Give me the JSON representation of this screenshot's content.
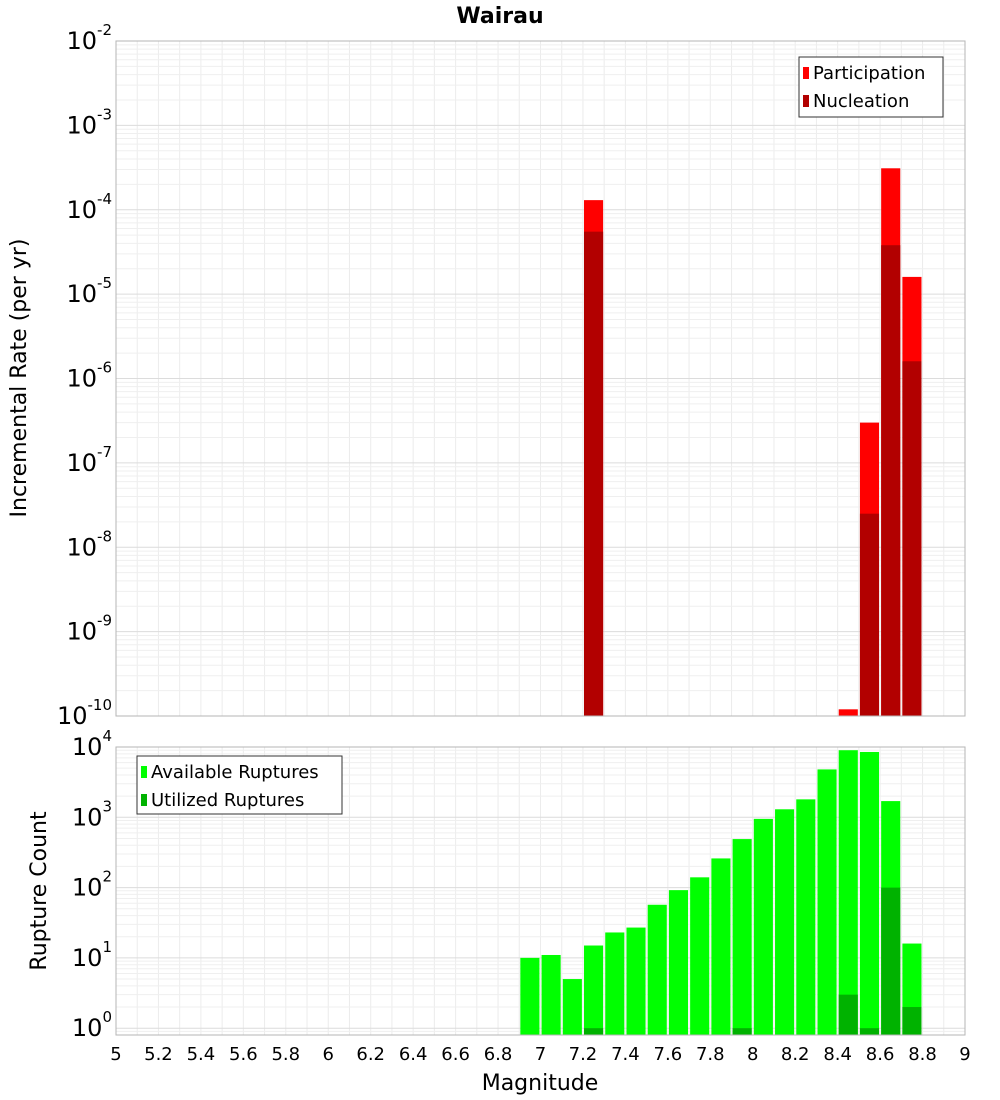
{
  "chart_data": [
    {
      "type": "bar",
      "title": "Wairau",
      "ylabel": "Incremental Rate (per yr)",
      "yscale": "log",
      "ylim": [
        1e-10,
        0.01
      ],
      "xlim": [
        5,
        9
      ],
      "grid": true,
      "legend_position": "top-right",
      "y_ticks": [
        {
          "base": "10",
          "exp": "-10",
          "value": 1e-10
        },
        {
          "base": "10",
          "exp": "-9",
          "value": 1e-09
        },
        {
          "base": "10",
          "exp": "-8",
          "value": 1e-08
        },
        {
          "base": "10",
          "exp": "-7",
          "value": 1e-07
        },
        {
          "base": "10",
          "exp": "-6",
          "value": 1e-06
        },
        {
          "base": "10",
          "exp": "-5",
          "value": 1e-05
        },
        {
          "base": "10",
          "exp": "-4",
          "value": 0.0001
        },
        {
          "base": "10",
          "exp": "-3",
          "value": 0.001
        },
        {
          "base": "10",
          "exp": "-2",
          "value": 0.01
        }
      ],
      "series": [
        {
          "name": "Participation",
          "color": "#ff0000",
          "points": [
            {
              "x": 7.25,
              "y": 0.00013
            },
            {
              "x": 8.45,
              "y": 1.2e-10
            },
            {
              "x": 8.55,
              "y": 3e-07
            },
            {
              "x": 8.65,
              "y": 0.00031
            },
            {
              "x": 8.75,
              "y": 1.6e-05
            }
          ]
        },
        {
          "name": "Nucleation",
          "color": "#b20000",
          "points": [
            {
              "x": 7.25,
              "y": 5.5e-05
            },
            {
              "x": 8.55,
              "y": 2.5e-08
            },
            {
              "x": 8.65,
              "y": 3.8e-05
            },
            {
              "x": 8.75,
              "y": 1.6e-06
            }
          ]
        }
      ]
    },
    {
      "type": "bar",
      "xlabel": "Magnitude",
      "ylabel": "Rupture Count",
      "yscale": "log",
      "ylim": [
        0.8,
        10000
      ],
      "xlim": [
        5,
        9
      ],
      "grid": true,
      "legend_position": "top-left",
      "x_ticks": [
        "5",
        "5.2",
        "5.4",
        "5.6",
        "5.8",
        "6",
        "6.2",
        "6.4",
        "6.6",
        "6.8",
        "7",
        "7.2",
        "7.4",
        "7.6",
        "7.8",
        "8",
        "8.2",
        "8.4",
        "8.6",
        "8.8",
        "9"
      ],
      "y_ticks": [
        {
          "base": "10",
          "exp": "0",
          "value": 1
        },
        {
          "base": "10",
          "exp": "1",
          "value": 10
        },
        {
          "base": "10",
          "exp": "2",
          "value": 100
        },
        {
          "base": "10",
          "exp": "3",
          "value": 1000
        },
        {
          "base": "10",
          "exp": "4",
          "value": 10000
        }
      ],
      "series": [
        {
          "name": "Available Ruptures",
          "color": "#00ff00",
          "points": [
            {
              "x": 6.95,
              "y": 10
            },
            {
              "x": 7.05,
              "y": 11
            },
            {
              "x": 7.15,
              "y": 5
            },
            {
              "x": 7.25,
              "y": 15
            },
            {
              "x": 7.35,
              "y": 23
            },
            {
              "x": 7.45,
              "y": 27
            },
            {
              "x": 7.55,
              "y": 57
            },
            {
              "x": 7.65,
              "y": 92
            },
            {
              "x": 7.75,
              "y": 140
            },
            {
              "x": 7.85,
              "y": 260
            },
            {
              "x": 7.95,
              "y": 490
            },
            {
              "x": 8.05,
              "y": 950
            },
            {
              "x": 8.15,
              "y": 1300
            },
            {
              "x": 8.25,
              "y": 1800
            },
            {
              "x": 8.35,
              "y": 4800
            },
            {
              "x": 8.45,
              "y": 9000
            },
            {
              "x": 8.55,
              "y": 8500
            },
            {
              "x": 8.65,
              "y": 1700
            },
            {
              "x": 8.75,
              "y": 16
            }
          ]
        },
        {
          "name": "Utilized Ruptures",
          "color": "#00b200",
          "points": [
            {
              "x": 7.25,
              "y": 1
            },
            {
              "x": 7.95,
              "y": 1
            },
            {
              "x": 8.45,
              "y": 3
            },
            {
              "x": 8.55,
              "y": 1
            },
            {
              "x": 8.65,
              "y": 100
            },
            {
              "x": 8.75,
              "y": 2
            }
          ]
        }
      ]
    }
  ]
}
